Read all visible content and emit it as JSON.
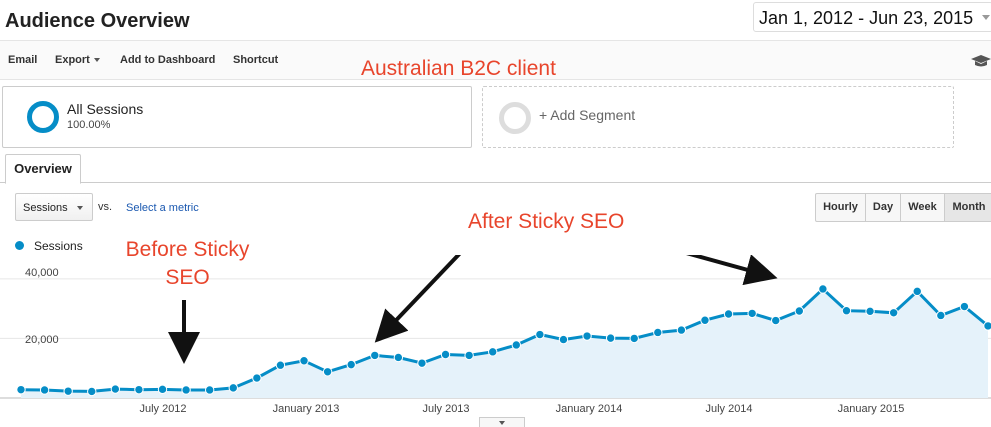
{
  "header": {
    "title": "Audience Overview",
    "date_range": "Jan 1, 2012 - Jun 23, 2015"
  },
  "toolbar": {
    "email": "Email",
    "export": "Export",
    "add_to_dashboard": "Add to Dashboard",
    "shortcut": "Shortcut"
  },
  "annotations": {
    "client": "Australian B2C client",
    "before": "Before Sticky",
    "before_line2": "SEO",
    "after": "After Sticky SEO"
  },
  "segments": {
    "all_sessions": "All Sessions",
    "all_sessions_pct": "100.00%",
    "add_segment": "+ Add Segment"
  },
  "tabs": {
    "overview": "Overview"
  },
  "controls": {
    "metric": "Sessions",
    "vs": "vs.",
    "select_metric": "Select a metric",
    "granularity": [
      "Hourly",
      "Day",
      "Week",
      "Month"
    ],
    "selected_granularity": "Month"
  },
  "colors": {
    "series": "#058dc7",
    "area": "#e5f2fa",
    "annotation": "#e8452c"
  },
  "chart_data": {
    "type": "area",
    "series": [
      {
        "name": "Sessions",
        "values": [
          2800,
          2700,
          2300,
          2200,
          3000,
          2800,
          2900,
          2700,
          2700,
          3400,
          6700,
          11000,
          12500,
          8800,
          11200,
          14300,
          13600,
          11700,
          14600,
          14300,
          15500,
          17800,
          21300,
          19600,
          20800,
          20100,
          20000,
          22000,
          22800,
          26100,
          28200,
          28400,
          26000,
          29200,
          36600,
          29300,
          29100,
          28600,
          35800,
          27700,
          30700,
          24200
        ]
      }
    ],
    "x_start": "2012-01",
    "x_end": "2015-06",
    "xticks": [
      "July 2012",
      "January 2013",
      "July 2013",
      "January 2014",
      "July 2014",
      "January 2015"
    ],
    "yticks": [
      "40,000",
      "20,000"
    ],
    "ylim": [
      0,
      48000
    ],
    "grid": true
  }
}
